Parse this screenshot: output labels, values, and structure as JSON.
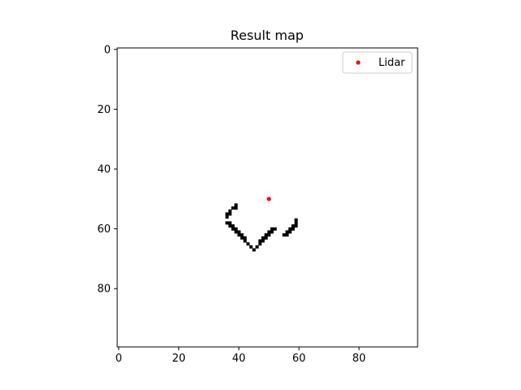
{
  "chart_data": {
    "type": "heatmap",
    "title": "Result map",
    "xlabel": "",
    "ylabel": "",
    "xlim": [
      -0.5,
      99.5
    ],
    "ylim": [
      99.5,
      -0.5
    ],
    "x_ticks": [
      0,
      20,
      40,
      60,
      80
    ],
    "y_ticks": [
      0,
      20,
      40,
      60,
      80
    ],
    "grid": false,
    "legend_position": "top-right",
    "colors": {
      "occupied": "#000000",
      "free": "#ffffff",
      "lidar": "#ff0000"
    },
    "occupied_cells": [
      [
        39,
        52
      ],
      [
        38,
        53
      ],
      [
        39,
        53
      ],
      [
        37,
        54
      ],
      [
        36,
        55
      ],
      [
        37,
        55
      ],
      [
        36,
        56
      ],
      [
        36,
        58
      ],
      [
        37,
        58
      ],
      [
        37,
        59
      ],
      [
        38,
        59
      ],
      [
        38,
        60
      ],
      [
        39,
        60
      ],
      [
        39,
        61
      ],
      [
        40,
        61
      ],
      [
        40,
        62
      ],
      [
        41,
        62
      ],
      [
        41,
        63
      ],
      [
        42,
        63
      ],
      [
        42,
        64
      ],
      [
        43,
        65
      ],
      [
        44,
        66
      ],
      [
        45,
        67
      ],
      [
        46,
        66
      ],
      [
        47,
        65
      ],
      [
        47,
        64
      ],
      [
        48,
        64
      ],
      [
        48,
        63
      ],
      [
        49,
        63
      ],
      [
        49,
        62
      ],
      [
        50,
        62
      ],
      [
        50,
        61
      ],
      [
        51,
        61
      ],
      [
        51,
        60
      ],
      [
        52,
        60
      ],
      [
        55,
        62
      ],
      [
        56,
        62
      ],
      [
        56,
        61
      ],
      [
        57,
        61
      ],
      [
        57,
        60
      ],
      [
        58,
        60
      ],
      [
        58,
        59
      ],
      [
        59,
        59
      ],
      [
        59,
        58
      ],
      [
        59,
        57
      ]
    ],
    "series": [
      {
        "name": "Lidar",
        "type": "scatter",
        "x": [
          50
        ],
        "y": [
          50
        ]
      }
    ]
  }
}
